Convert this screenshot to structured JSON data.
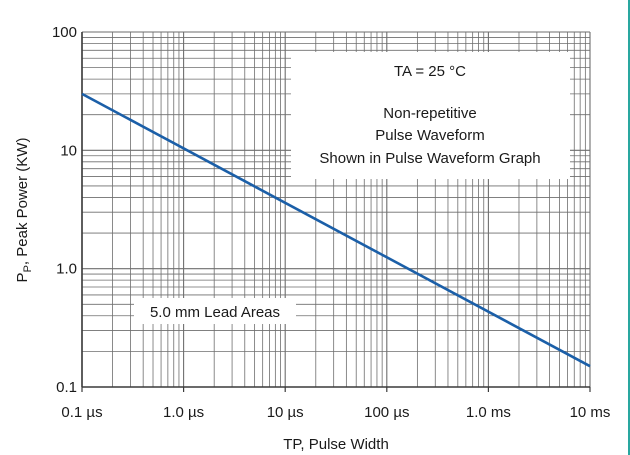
{
  "chart_data": {
    "type": "line",
    "xscale": "log",
    "yscale": "log",
    "xlabel": "TP, Pulse Width",
    "ylabel": "P",
    "ylabel_sub": "P",
    "ylabel_suffix": ", Peak Power (KW)",
    "xlim": [
      "0.1 µs",
      "10 ms"
    ],
    "ylim": [
      0.1,
      100
    ],
    "x_ticks": [
      "0.1 µs",
      "1.0 µs",
      "10 µs",
      "100 µs",
      "1.0 ms",
      "10 ms"
    ],
    "y_ticks": [
      "100",
      "10",
      "1.0",
      "0.1"
    ],
    "grid": true,
    "series": [
      {
        "x": [
          "0.1 µs",
          "10 ms"
        ],
        "y": [
          30,
          0.15
        ]
      }
    ],
    "annotations": {
      "ta_label": "TA = 25 °C",
      "condition_lines": [
        "Non-repetitive",
        "Pulse Waveform",
        "Shown in Pulse Waveform Graph"
      ],
      "lead_label": "5.0 mm Lead Areas"
    }
  },
  "colors": {
    "line": "#1b5fa8",
    "grid": "#6e6e6e",
    "edge_bar": "#29a7a0"
  }
}
